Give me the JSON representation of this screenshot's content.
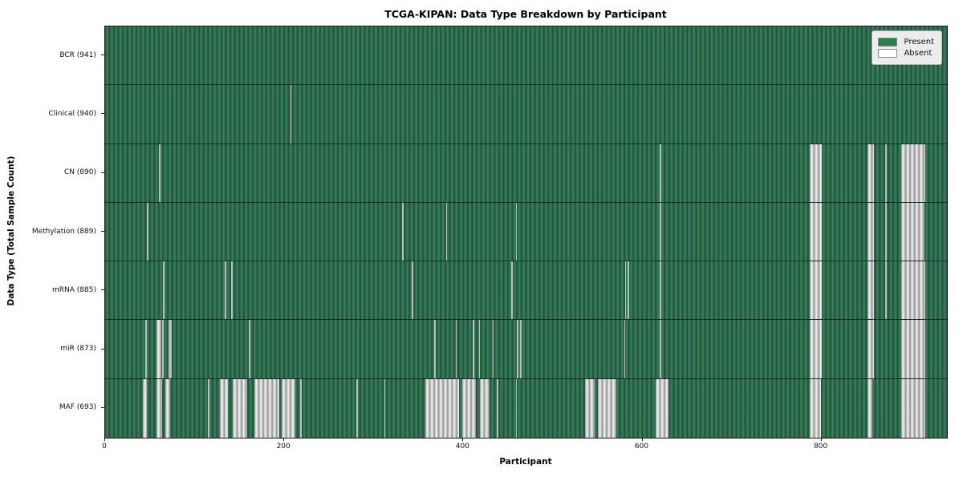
{
  "chart_data": {
    "type": "heatmap",
    "title": "TCGA-KIPAN: Data Type Breakdown by Participant",
    "xlabel": "Participant",
    "ylabel": "Data Type (Total Sample Count)",
    "x_ticks": [
      0,
      200,
      400,
      600,
      800
    ],
    "x_range": [
      0,
      941
    ],
    "n_participants": 941,
    "grid": "row-separators",
    "legend_position": "upper-right",
    "legend": [
      {
        "label": "Present",
        "color": "#2e7d52"
      },
      {
        "label": "Absent",
        "color": "#ffffff"
      }
    ],
    "colors": {
      "present_fill": "#2e7d52",
      "present_edge": "#1d5038",
      "absent_fill": "#ffffff",
      "absent_edge": "#8f8f8f",
      "legend_bg": "#ececec",
      "axis": "#1a1a1a"
    },
    "rows": [
      {
        "data_type": "BCR",
        "label": "BCR (941)",
        "present_count": 941,
        "absent_ranges": []
      },
      {
        "data_type": "Clinical",
        "label": "Clinical (940)",
        "present_count": 940,
        "absent_ranges": [
          [
            207,
            208
          ]
        ]
      },
      {
        "data_type": "CN",
        "label": "CN (890)",
        "present_count": 890,
        "absent_ranges": [
          [
            60,
            62
          ],
          [
            620,
            621
          ],
          [
            788,
            801
          ],
          [
            852,
            859
          ],
          [
            872,
            873
          ],
          [
            890,
            917
          ]
        ]
      },
      {
        "data_type": "Methylation",
        "label": "Methylation (889)",
        "present_count": 889,
        "absent_ranges": [
          [
            47,
            48
          ],
          [
            332,
            333
          ],
          [
            381,
            382
          ],
          [
            459,
            460
          ],
          [
            620,
            621
          ],
          [
            788,
            801
          ],
          [
            852,
            859
          ],
          [
            872,
            873
          ],
          [
            890,
            916
          ]
        ]
      },
      {
        "data_type": "mRNA",
        "label": "mRNA (885)",
        "present_count": 885,
        "absent_ranges": [
          [
            65,
            66
          ],
          [
            134,
            135
          ],
          [
            141,
            142
          ],
          [
            343,
            344
          ],
          [
            454,
            455
          ],
          [
            581,
            582
          ],
          [
            584,
            585
          ],
          [
            620,
            621
          ],
          [
            788,
            801
          ],
          [
            852,
            859
          ],
          [
            872,
            873
          ],
          [
            890,
            917
          ]
        ]
      },
      {
        "data_type": "miR",
        "label": "miR (873)",
        "present_count": 873,
        "absent_ranges": [
          [
            45,
            46
          ],
          [
            57,
            63
          ],
          [
            64,
            65
          ],
          [
            71,
            72
          ],
          [
            73,
            74
          ],
          [
            161,
            162
          ],
          [
            368,
            369
          ],
          [
            392,
            393
          ],
          [
            411,
            412
          ],
          [
            418,
            419
          ],
          [
            433,
            434
          ],
          [
            460,
            462
          ],
          [
            464,
            465
          ],
          [
            580,
            581
          ],
          [
            620,
            621
          ],
          [
            788,
            801
          ],
          [
            852,
            859
          ],
          [
            890,
            917
          ]
        ]
      },
      {
        "data_type": "MAF",
        "label": "MAF (693)",
        "present_count": 693,
        "absent_ranges": [
          [
            42,
            47
          ],
          [
            57,
            64
          ],
          [
            67,
            73
          ],
          [
            115,
            116
          ],
          [
            128,
            137
          ],
          [
            143,
            159
          ],
          [
            167,
            195
          ],
          [
            197,
            213
          ],
          [
            218,
            219
          ],
          [
            281,
            282
          ],
          [
            312,
            313
          ],
          [
            358,
            396
          ],
          [
            399,
            414
          ],
          [
            419,
            430
          ],
          [
            438,
            439
          ],
          [
            459,
            460
          ],
          [
            536,
            547
          ],
          [
            551,
            571
          ],
          [
            615,
            630
          ],
          [
            788,
            800
          ],
          [
            852,
            858
          ],
          [
            890,
            917
          ]
        ]
      }
    ]
  }
}
